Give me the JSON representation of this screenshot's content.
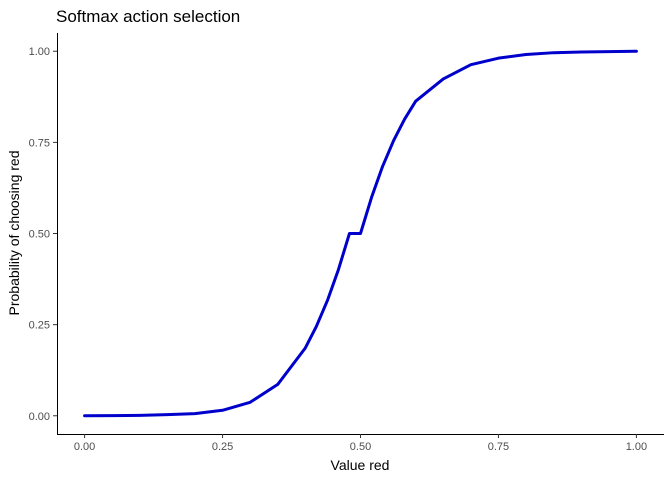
{
  "chart_data": {
    "type": "line",
    "title": "Softmax action selection",
    "xlabel": "Value red",
    "ylabel": "Probability of choosing red",
    "xlim": [
      -0.05,
      1.05
    ],
    "ylim": [
      -0.05,
      1.05
    ],
    "x_ticks": [
      0.0,
      0.25,
      0.5,
      0.75,
      1.0
    ],
    "x_tick_labels": [
      "0.00",
      "0.25",
      "0.50",
      "0.75",
      "1.00"
    ],
    "y_ticks": [
      0.0,
      0.25,
      0.5,
      0.75,
      1.0
    ],
    "y_tick_labels": [
      "0.00",
      "0.25",
      "0.50",
      "0.75",
      "1.00"
    ],
    "grid": false,
    "series": [
      {
        "color": "#0000cc",
        "x": [
          0.0,
          0.05,
          0.1,
          0.15,
          0.2,
          0.25,
          0.3,
          0.35,
          0.4,
          0.42,
          0.44,
          0.46,
          0.48,
          0.5,
          0.52,
          0.54,
          0.56,
          0.58,
          0.6,
          0.65,
          0.7,
          0.75,
          0.8,
          0.85,
          0.9,
          0.95,
          1.0
        ],
        "y": [
          0.0,
          0.0005,
          0.001,
          0.003,
          0.006,
          0.015,
          0.037,
          0.086,
          0.186,
          0.245,
          0.316,
          0.401,
          0.5,
          0.5,
          0.599,
          0.684,
          0.755,
          0.814,
          0.863,
          0.924,
          0.963,
          0.981,
          0.991,
          0.996,
          0.998,
          0.999,
          1.0
        ]
      }
    ]
  }
}
